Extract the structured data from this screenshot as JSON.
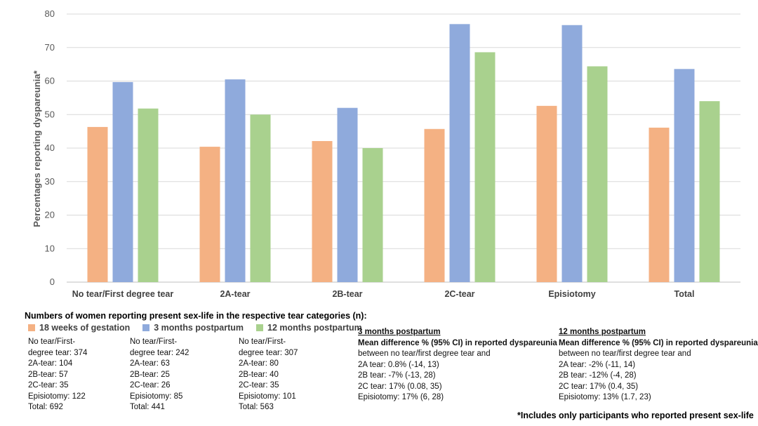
{
  "chart_data": {
    "type": "bar",
    "categories": [
      "No tear/First degree tear",
      "2A-tear",
      "2B-tear",
      "2C-tear",
      "Episiotomy",
      "Total"
    ],
    "series": [
      {
        "name": "18 weeks of gestation",
        "color": "#F4B183",
        "values": [
          46.3,
          40.4,
          42.1,
          45.7,
          52.6,
          46.1
        ]
      },
      {
        "name": "3 months postpartum",
        "color": "#8FAADC",
        "values": [
          59.7,
          60.5,
          52.0,
          77.0,
          76.7,
          63.6
        ]
      },
      {
        "name": "12 months postpartum",
        "color": "#A9D18E",
        "values": [
          51.8,
          50.0,
          40.0,
          68.6,
          64.4,
          54.0
        ]
      }
    ],
    "ylim": [
      0,
      80
    ],
    "yticks": [
      0,
      10,
      20,
      30,
      40,
      50,
      60,
      70,
      80
    ],
    "ylabel": "Percentages reporting dyspareunia*",
    "xlabel": "",
    "grid": true
  },
  "counts": {
    "title": "Numbers of women reporting present sex-life in the respective tear categories (n):",
    "columns": [
      [
        "No tear/First-",
        "degree tear: 374",
        "2A-tear: 104",
        "2B-tear: 57",
        "2C-tear: 35",
        "Episiotomy: 122",
        "Total: 692"
      ],
      [
        "No tear/First-",
        "degree tear: 242",
        "2A-tear: 63",
        "2B-tear: 25",
        "2C-tear: 26",
        "Episiotomy: 85",
        "Total: 441"
      ],
      [
        "No tear/First-",
        "degree tear: 307",
        "2A-tear: 80",
        "2B-tear: 40",
        "2C-tear: 35",
        "Episiotomy: 101",
        "Total:  563"
      ]
    ]
  },
  "differences": [
    {
      "heading": "3 months postpartum",
      "subheading": "Mean difference % (95% CI) in reported dyspareunia",
      "lines": [
        "between no tear/first degree tear and",
        "2A tear: 0.8% (-14, 13)",
        "2B tear: -7% (-13, 28)",
        "2C tear: 17% (0.08, 35)",
        "Episiotomy: 17% (6, 28)"
      ]
    },
    {
      "heading": "12 months postpartum",
      "subheading": "Mean difference % (95% CI) in reported dyspareunia",
      "lines": [
        "between no tear/first degree tear and",
        "2A tear: -2% (-11, 14)",
        "2B tear: -12% (-4, 28)",
        "2C tear: 17% (0.4, 35)",
        "Episiotomy: 13% (1.7, 23)"
      ]
    }
  ],
  "footnote": "*Includes only participants who reported present sex-life"
}
